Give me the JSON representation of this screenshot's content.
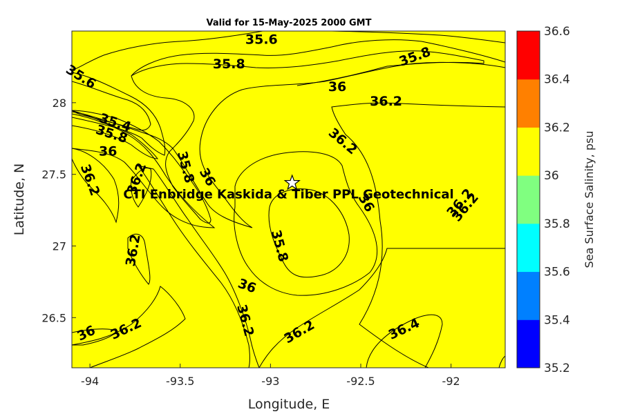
{
  "title": "Valid for 15-May-2025 2000 GMT",
  "site_label": "CTI Enbridge  Kaskida & Tiber PPL Geotechnical",
  "star_icon": "star-icon",
  "colors": {
    "c35_2": "#0000ff",
    "c35_4": "#0080ff",
    "c35_6": "#00ffff",
    "c35_8": "#80ff80",
    "c36": "#ffff00",
    "c36_2": "#ff8000",
    "c36_4": "#ff0000"
  },
  "chart_data": {
    "type": "contour",
    "xlabel": "Longitude, E",
    "ylabel": "Latitude, N",
    "xlim": [
      -94.1,
      -91.7
    ],
    "ylim": [
      26.15,
      28.5
    ],
    "xticks": [
      "-94",
      "-93.5",
      "-93",
      "-92.5",
      "-92"
    ],
    "yticks": [
      "26.5",
      "27",
      "27.5",
      "28"
    ],
    "colorbar": {
      "label": "Sea Surface Salinity, psu",
      "levels": [
        35.2,
        35.4,
        35.6,
        35.8,
        36,
        36.2,
        36.4,
        36.6
      ],
      "tick_labels": [
        "35.2",
        "35.4",
        "35.6",
        "35.8",
        "36",
        "36.2",
        "36.4",
        "36.6"
      ]
    },
    "contour_labels": [
      {
        "text": "35.6",
        "lon": -93.05,
        "lat": 28.44,
        "angle": 0
      },
      {
        "text": "35.8",
        "lon": -93.23,
        "lat": 28.27,
        "angle": 0
      },
      {
        "text": "35.8",
        "lon": -92.2,
        "lat": 28.32,
        "angle": -20
      },
      {
        "text": "35.6",
        "lon": -94.05,
        "lat": 28.18,
        "angle": 32
      },
      {
        "text": "36",
        "lon": -92.63,
        "lat": 28.11,
        "angle": 0
      },
      {
        "text": "36.2",
        "lon": -92.36,
        "lat": 28.01,
        "angle": 0
      },
      {
        "text": "35.4",
        "lon": -93.86,
        "lat": 27.86,
        "angle": 18
      },
      {
        "text": "35.8",
        "lon": -93.88,
        "lat": 27.78,
        "angle": 18
      },
      {
        "text": "36",
        "lon": -93.9,
        "lat": 27.66,
        "angle": 0
      },
      {
        "text": "36.2",
        "lon": -92.6,
        "lat": 27.73,
        "angle": 40
      },
      {
        "text": "35.8",
        "lon": -93.47,
        "lat": 27.55,
        "angle": 75
      },
      {
        "text": "36",
        "lon": -93.35,
        "lat": 27.48,
        "angle": 60
      },
      {
        "text": "36.2",
        "lon": -94.0,
        "lat": 27.46,
        "angle": 70
      },
      {
        "text": "36.2",
        "lon": -93.74,
        "lat": 27.47,
        "angle": -70
      },
      {
        "text": "36",
        "lon": -92.47,
        "lat": 27.3,
        "angle": 60
      },
      {
        "text": "36.2",
        "lon": -91.95,
        "lat": 27.3,
        "angle": -50
      },
      {
        "text": "35.8",
        "lon": -92.95,
        "lat": 27.0,
        "angle": 75
      },
      {
        "text": "36.2",
        "lon": -93.76,
        "lat": 26.97,
        "angle": -80
      },
      {
        "text": "36",
        "lon": -93.13,
        "lat": 26.72,
        "angle": 20
      },
      {
        "text": "36.2",
        "lon": -93.14,
        "lat": 26.48,
        "angle": 75
      },
      {
        "text": "36",
        "lon": -94.02,
        "lat": 26.39,
        "angle": -25
      },
      {
        "text": "36.2",
        "lon": -93.8,
        "lat": 26.42,
        "angle": -25
      },
      {
        "text": "36.2",
        "lon": -92.84,
        "lat": 26.4,
        "angle": -30
      },
      {
        "text": "36.4",
        "lon": -92.26,
        "lat": 26.42,
        "angle": -25
      },
      {
        "text": "36.2",
        "lon": -91.92,
        "lat": 27.27,
        "angle": -50
      }
    ],
    "site": {
      "lon": -92.88,
      "lat": 27.44,
      "label_lon": -92.9,
      "label_lat": 27.36
    }
  }
}
